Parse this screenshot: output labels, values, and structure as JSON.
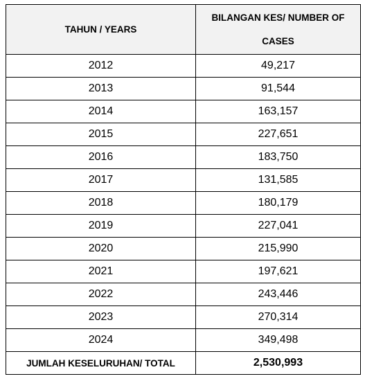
{
  "table": {
    "headers": {
      "year": "TAHUN / YEARS",
      "cases": "BILANGAN KES/ NUMBER OF CASES"
    },
    "rows": [
      {
        "year": "2012",
        "cases": "49,217"
      },
      {
        "year": "2013",
        "cases": "91,544"
      },
      {
        "year": "2014",
        "cases": "163,157"
      },
      {
        "year": "2015",
        "cases": "227,651"
      },
      {
        "year": "2016",
        "cases": "183,750"
      },
      {
        "year": "2017",
        "cases": "131,585"
      },
      {
        "year": "2018",
        "cases": "180,179"
      },
      {
        "year": "2019",
        "cases": "227,041"
      },
      {
        "year": "2020",
        "cases": "215,990"
      },
      {
        "year": "2021",
        "cases": "197,621"
      },
      {
        "year": "2022",
        "cases": "243,446"
      },
      {
        "year": "2023",
        "cases": "270,314"
      },
      {
        "year": "2024",
        "cases": "349,498"
      }
    ],
    "total": {
      "label": "JUMLAH KESELURUHAN/ TOTAL",
      "value": "2,530,993"
    }
  }
}
